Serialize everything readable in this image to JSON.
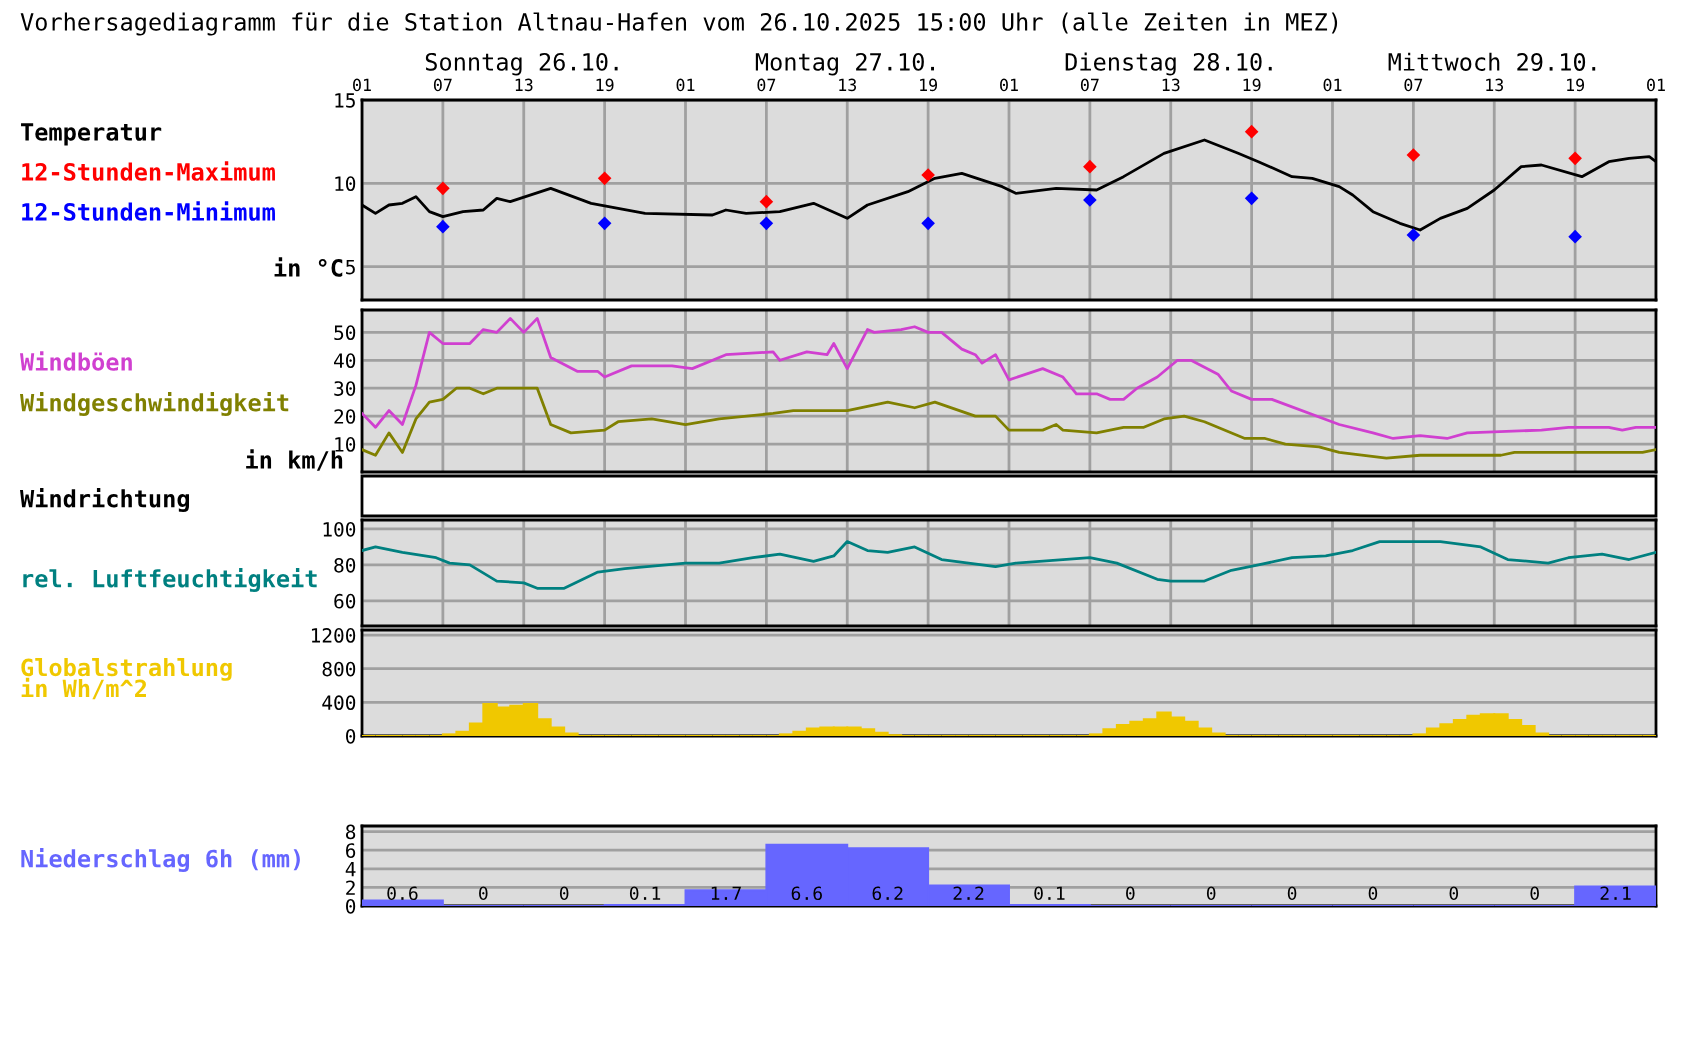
{
  "chart_data": [
    {
      "type": "line",
      "subtitle": "Vorhersagediagramm für die Station Altnau-Hafen vom 26.10.2025 15:00 Uhr (alle Zeiten in MEZ)",
      "ylabel": "in °C",
      "annotations": [
        "Temperatur",
        "Sonntag 26.10.",
        "Montag 27.10.",
        "Dienstag 28.10.",
        "Mittwoch 29.10."
      ],
      "xlim": [
        "2025-10-26T01:00",
        "2025-10-30T01:00"
      ],
      "ylim": [
        3,
        15
      ],
      "yticks": [
        5,
        10,
        15
      ],
      "grid": true,
      "xticks": [
        {
          "value": "2025-10-26T01:00",
          "label": "01"
        },
        {
          "value": "2025-10-26T07:00",
          "label": "07"
        },
        {
          "value": "2025-10-26T13:00",
          "label": "13"
        },
        {
          "value": "2025-10-26T19:00",
          "label": "19"
        },
        {
          "value": "2025-10-27T01:00",
          "label": "01"
        },
        {
          "value": "2025-10-27T07:00",
          "label": "07"
        },
        {
          "value": "2025-10-27T13:00",
          "label": "13"
        },
        {
          "value": "2025-10-27T19:00",
          "label": "19"
        },
        {
          "value": "2025-10-28T01:00",
          "label": "01"
        },
        {
          "value": "2025-10-28T07:00",
          "label": "07"
        },
        {
          "value": "2025-10-28T13:00",
          "label": "13"
        },
        {
          "value": "2025-10-28T19:00",
          "label": "19"
        },
        {
          "value": "2025-10-29T01:00",
          "label": "01"
        },
        {
          "value": "2025-10-29T07:00",
          "label": "07"
        },
        {
          "value": "2025-10-29T13:00",
          "label": "13"
        },
        {
          "value": "2025-10-29T19:00",
          "label": "19"
        },
        {
          "value": "2025-10-30T01:00",
          "label": "01"
        }
      ],
      "series": [
        {
          "type": "line",
          "color": "#000000",
          "x": [
            "2025-10-26T01:00",
            "2025-10-26T02:00",
            "2025-10-26T03:00",
            "2025-10-26T04:00",
            "2025-10-26T05:00",
            "2025-10-26T06:00",
            "2025-10-26T07:00",
            "2025-10-26T08:30",
            "2025-10-26T10:00",
            "2025-10-26T11:00",
            "2025-10-26T12:00",
            "2025-10-26T15:00",
            "2025-10-26T18:00",
            "2025-10-26T22:00",
            "2025-10-27T03:00",
            "2025-10-27T04:00",
            "2025-10-27T05:30",
            "2025-10-27T08:00",
            "2025-10-27T10:30",
            "2025-10-27T13:00",
            "2025-10-27T14:30",
            "2025-10-27T17:30",
            "2025-10-27T19:30",
            "2025-10-27T21:30",
            "2025-10-28T00:30",
            "2025-10-28T01:30",
            "2025-10-28T04:30",
            "2025-10-28T07:30",
            "2025-10-28T09:30",
            "2025-10-28T12:30",
            "2025-10-28T15:30",
            "2025-10-28T18:00",
            "2025-10-28T19:30",
            "2025-10-28T22:00",
            "2025-10-28T23:30",
            "2025-10-29T01:30",
            "2025-10-29T02:30",
            "2025-10-29T04:00",
            "2025-10-29T06:00",
            "2025-10-29T07:30",
            "2025-10-29T09:00",
            "2025-10-29T11:00",
            "2025-10-29T13:00",
            "2025-10-29T15:00",
            "2025-10-29T16:30",
            "2025-10-29T19:30",
            "2025-10-29T21:30",
            "2025-10-29T23:00",
            "2025-10-30T00:30",
            "2025-10-30T01:00"
          ],
          "values": [
            8.7,
            8.2,
            8.7,
            8.8,
            9.2,
            8.3,
            8.0,
            8.3,
            8.4,
            9.1,
            8.9,
            9.7,
            8.8,
            8.2,
            8.1,
            8.4,
            8.2,
            8.3,
            8.8,
            7.9,
            8.7,
            9.5,
            10.3,
            10.6,
            9.8,
            9.4,
            9.7,
            9.6,
            10.4,
            11.8,
            12.6,
            11.8,
            11.3,
            10.4,
            10.3,
            9.8,
            9.3,
            8.3,
            7.6,
            7.2,
            7.9,
            8.5,
            9.6,
            11.0,
            11.1,
            10.4,
            11.3,
            11.5,
            11.6,
            11.3
          ]
        },
        {
          "type": "scatter",
          "name": "12-Stunden-Maximum",
          "color": "#ff0000",
          "marker": "diamond",
          "x": [
            "2025-10-26T07:00",
            "2025-10-26T19:00",
            "2025-10-27T07:00",
            "2025-10-27T19:00",
            "2025-10-28T07:00",
            "2025-10-28T19:00",
            "2025-10-29T07:00",
            "2025-10-29T19:00"
          ],
          "values": [
            9.7,
            10.3,
            8.9,
            10.5,
            11.0,
            13.1,
            11.7,
            11.5
          ]
        },
        {
          "type": "scatter",
          "name": "12-Stunden-Minimum",
          "color": "#0000ff",
          "marker": "diamond",
          "x": [
            "2025-10-26T07:00",
            "2025-10-26T19:00",
            "2025-10-27T07:00",
            "2025-10-27T19:00",
            "2025-10-28T07:00",
            "2025-10-28T19:00",
            "2025-10-29T07:00",
            "2025-10-29T19:00"
          ],
          "values": [
            7.4,
            7.6,
            7.6,
            7.6,
            9.0,
            9.1,
            6.9,
            6.8
          ]
        }
      ]
    },
    {
      "type": "line",
      "ylabel": "in km/h",
      "xlim": [
        "2025-10-26T01:00",
        "2025-10-30T01:00"
      ],
      "ylim": [
        0,
        58
      ],
      "yticks": [
        10,
        20,
        30,
        40,
        50
      ],
      "grid": true,
      "tick_labels": "y",
      "xticks": [
        {
          "value": "2025-10-26T01:00",
          "label": null
        },
        {
          "value": "2025-10-26T07:00",
          "label": null
        },
        {
          "value": "2025-10-26T13:00",
          "label": null
        },
        {
          "value": "2025-10-26T19:00",
          "label": null
        },
        {
          "value": "2025-10-27T01:00",
          "label": null
        },
        {
          "value": "2025-10-27T07:00",
          "label": null
        },
        {
          "value": "2025-10-27T13:00",
          "label": null
        },
        {
          "value": "2025-10-27T19:00",
          "label": null
        },
        {
          "value": "2025-10-28T01:00",
          "label": null
        },
        {
          "value": "2025-10-28T07:00",
          "label": null
        },
        {
          "value": "2025-10-28T13:00",
          "label": null
        },
        {
          "value": "2025-10-28T19:00",
          "label": null
        },
        {
          "value": "2025-10-29T01:00",
          "label": null
        },
        {
          "value": "2025-10-29T07:00",
          "label": null
        },
        {
          "value": "2025-10-29T13:00",
          "label": null
        },
        {
          "value": "2025-10-29T19:00",
          "label": null
        },
        {
          "value": "2025-10-30T01:00",
          "label": null
        }
      ],
      "series": [
        {
          "name": "Windböen",
          "color": "#d040d0",
          "x": [
            "2025-10-26T01:00",
            "2025-10-26T02:00",
            "2025-10-26T03:00",
            "2025-10-26T04:00",
            "2025-10-26T05:00",
            "2025-10-26T06:00",
            "2025-10-26T07:00",
            "2025-10-26T09:00",
            "2025-10-26T10:00",
            "2025-10-26T11:00",
            "2025-10-26T12:00",
            "2025-10-26T13:00",
            "2025-10-26T14:00",
            "2025-10-26T15:00",
            "2025-10-26T17:00",
            "2025-10-26T18:30",
            "2025-10-26T19:00",
            "2025-10-26T21:00",
            "2025-10-27T00:00",
            "2025-10-27T01:30",
            "2025-10-27T04:00",
            "2025-10-27T07:30",
            "2025-10-27T08:00",
            "2025-10-27T10:00",
            "2025-10-27T11:30",
            "2025-10-27T12:00",
            "2025-10-27T13:00",
            "2025-10-27T14:30",
            "2025-10-27T15:00",
            "2025-10-27T17:00",
            "2025-10-27T18:00",
            "2025-10-27T19:00",
            "2025-10-27T20:00",
            "2025-10-27T21:30",
            "2025-10-27T22:30",
            "2025-10-27T23:00",
            "2025-10-28T00:00",
            "2025-10-28T01:00",
            "2025-10-28T03:30",
            "2025-10-28T05:00",
            "2025-10-28T06:00",
            "2025-10-28T07:30",
            "2025-10-28T08:30",
            "2025-10-28T09:30",
            "2025-10-28T10:30",
            "2025-10-28T12:00",
            "2025-10-28T13:30",
            "2025-10-28T14:30",
            "2025-10-28T16:30",
            "2025-10-28T17:30",
            "2025-10-28T19:00",
            "2025-10-28T20:30",
            "2025-10-29T01:30",
            "2025-10-29T04:00",
            "2025-10-29T05:30",
            "2025-10-29T07:30",
            "2025-10-29T09:30",
            "2025-10-29T11:00",
            "2025-10-29T16:30",
            "2025-10-29T18:30",
            "2025-10-29T21:30",
            "2025-10-29T22:30",
            "2025-10-29T23:30",
            "2025-10-30T01:00"
          ],
          "values": [
            21,
            16,
            22,
            17,
            31,
            50,
            46,
            46,
            51,
            50,
            55,
            50,
            55,
            41,
            36,
            36,
            34,
            38,
            38,
            37,
            42,
            43,
            40,
            43,
            42,
            46,
            37,
            51,
            50,
            51,
            52,
            50,
            50,
            44,
            42,
            39,
            42,
            33,
            37,
            34,
            28,
            28,
            26,
            26,
            30,
            34,
            40,
            40,
            35,
            29,
            26,
            26,
            17,
            14,
            12,
            13,
            12,
            14,
            15,
            16,
            16,
            15,
            16,
            16
          ]
        },
        {
          "name": "Windgeschwindigkeit",
          "color": "#808000",
          "x": [
            "2025-10-26T01:00",
            "2025-10-26T02:00",
            "2025-10-26T03:00",
            "2025-10-26T04:00",
            "2025-10-26T05:00",
            "2025-10-26T06:00",
            "2025-10-26T07:00",
            "2025-10-26T08:00",
            "2025-10-26T09:00",
            "2025-10-26T10:00",
            "2025-10-26T11:00",
            "2025-10-26T14:00",
            "2025-10-26T15:00",
            "2025-10-26T16:30",
            "2025-10-26T19:00",
            "2025-10-26T20:00",
            "2025-10-26T22:30",
            "2025-10-27T01:00",
            "2025-10-27T03:30",
            "2025-10-27T07:30",
            "2025-10-27T09:00",
            "2025-10-27T13:00",
            "2025-10-27T16:00",
            "2025-10-27T18:00",
            "2025-10-27T19:30",
            "2025-10-27T22:30",
            "2025-10-28T00:00",
            "2025-10-28T01:00",
            "2025-10-28T03:30",
            "2025-10-28T04:30",
            "2025-10-28T05:00",
            "2025-10-28T07:30",
            "2025-10-28T09:30",
            "2025-10-28T11:00",
            "2025-10-28T12:30",
            "2025-10-28T14:00",
            "2025-10-28T15:30",
            "2025-10-28T18:30",
            "2025-10-28T20:00",
            "2025-10-28T21:30",
            "2025-10-29T00:00",
            "2025-10-29T01:30",
            "2025-10-29T05:00",
            "2025-10-29T07:30",
            "2025-10-29T13:30",
            "2025-10-29T14:30",
            "2025-10-30T00:00",
            "2025-10-30T01:00"
          ],
          "values": [
            8,
            6,
            14,
            7,
            19,
            25,
            26,
            30,
            30,
            28,
            30,
            30,
            17,
            14,
            15,
            18,
            19,
            17,
            19,
            21,
            22,
            22,
            25,
            23,
            25,
            20,
            20,
            15,
            15,
            17,
            15,
            14,
            16,
            16,
            19,
            20,
            18,
            12,
            12,
            10,
            9,
            7,
            5,
            6,
            6,
            7,
            7,
            8
          ]
        }
      ]
    },
    {
      "type": "other",
      "subtitle": "Windrichtung"
    },
    {
      "type": "line",
      "xlim": [
        "2025-10-26T01:00",
        "2025-10-30T01:00"
      ],
      "ylim": [
        46,
        105
      ],
      "yticks": [
        60,
        80,
        100
      ],
      "grid": true,
      "tick_labels": "y",
      "xticks": [
        {
          "value": "2025-10-26T01:00",
          "label": null
        },
        {
          "value": "2025-10-26T07:00",
          "label": null
        },
        {
          "value": "2025-10-26T13:00",
          "label": null
        },
        {
          "value": "2025-10-26T19:00",
          "label": null
        },
        {
          "value": "2025-10-27T01:00",
          "label": null
        },
        {
          "value": "2025-10-27T07:00",
          "label": null
        },
        {
          "value": "2025-10-27T13:00",
          "label": null
        },
        {
          "value": "2025-10-27T19:00",
          "label": null
        },
        {
          "value": "2025-10-28T01:00",
          "label": null
        },
        {
          "value": "2025-10-28T07:00",
          "label": null
        },
        {
          "value": "2025-10-28T13:00",
          "label": null
        },
        {
          "value": "2025-10-28T19:00",
          "label": null
        },
        {
          "value": "2025-10-29T01:00",
          "label": null
        },
        {
          "value": "2025-10-29T07:00",
          "label": null
        },
        {
          "value": "2025-10-29T13:00",
          "label": null
        },
        {
          "value": "2025-10-29T19:00",
          "label": null
        },
        {
          "value": "2025-10-30T01:00",
          "label": null
        }
      ],
      "series": [
        {
          "name": "rel. Luftfeuchtigkeit",
          "color": "#008080",
          "x": [
            "2025-10-26T01:00",
            "2025-10-26T02:00",
            "2025-10-26T04:00",
            "2025-10-26T06:30",
            "2025-10-26T07:30",
            "2025-10-26T09:00",
            "2025-10-26T11:00",
            "2025-10-26T13:00",
            "2025-10-26T14:00",
            "2025-10-26T16:00",
            "2025-10-26T18:30",
            "2025-10-26T20:30",
            "2025-10-27T01:00",
            "2025-10-27T03:30",
            "2025-10-27T06:00",
            "2025-10-27T08:00",
            "2025-10-27T10:30",
            "2025-10-27T12:00",
            "2025-10-27T13:00",
            "2025-10-27T14:30",
            "2025-10-27T16:00",
            "2025-10-27T18:00",
            "2025-10-27T20:00",
            "2025-10-27T22:00",
            "2025-10-28T00:00",
            "2025-10-28T01:30",
            "2025-10-28T07:00",
            "2025-10-28T09:00",
            "2025-10-28T12:00",
            "2025-10-28T13:00",
            "2025-10-28T15:30",
            "2025-10-28T17:30",
            "2025-10-28T19:30",
            "2025-10-28T22:00",
            "2025-10-29T00:30",
            "2025-10-29T02:30",
            "2025-10-29T04:30",
            "2025-10-29T09:00",
            "2025-10-29T12:00",
            "2025-10-29T14:00",
            "2025-10-29T17:00",
            "2025-10-29T18:30",
            "2025-10-29T21:00",
            "2025-10-29T23:00",
            "2025-10-30T01:00"
          ],
          "values": [
            88,
            90,
            87,
            84,
            81,
            80,
            71,
            70,
            67,
            67,
            76,
            78,
            81,
            81,
            84,
            86,
            82,
            85,
            93,
            88,
            87,
            90,
            83,
            81,
            79,
            81,
            84,
            81,
            72,
            71,
            71,
            77,
            80,
            84,
            85,
            88,
            93,
            93,
            90,
            83,
            81,
            84,
            86,
            83,
            87
          ]
        }
      ]
    },
    {
      "type": "bar",
      "ylim": [
        0,
        1260
      ],
      "yticks": [
        0,
        400,
        800,
        1200
      ],
      "grid": "y",
      "categories": [
        null,
        null,
        null,
        null,
        null,
        null,
        null,
        null,
        null,
        null,
        null,
        null,
        null,
        null,
        null,
        null,
        null,
        null,
        null,
        null,
        null,
        null,
        null,
        null,
        null,
        null,
        null,
        null,
        null,
        null,
        null,
        null,
        null,
        null,
        null,
        null,
        null,
        null,
        null,
        null,
        null,
        null,
        null,
        null,
        null,
        null,
        null,
        null,
        null,
        null,
        null,
        null,
        null,
        null,
        null,
        null,
        null,
        null,
        null,
        null,
        null,
        null,
        null,
        null,
        null,
        null,
        null,
        null,
        null,
        null,
        null,
        null,
        null,
        null,
        null,
        null,
        null,
        null,
        null,
        null,
        null,
        null,
        null,
        null,
        null,
        null,
        null,
        null,
        null,
        null,
        null,
        null,
        null,
        null,
        null,
        null
      ],
      "series": [
        {
          "name": "Globalstrahlung\nin Wh/m^2",
          "color": "#f0c800",
          "values": [
            0,
            0,
            0,
            0,
            0,
            0,
            20,
            50,
            150,
            380,
            340,
            360,
            380,
            200,
            100,
            30,
            0,
            0,
            0,
            0,
            0,
            0,
            0,
            0,
            0,
            0,
            0,
            0,
            0,
            0,
            0,
            20,
            50,
            90,
            100,
            100,
            100,
            80,
            40,
            10,
            0,
            0,
            0,
            0,
            0,
            0,
            0,
            0,
            0,
            0,
            0,
            0,
            0,
            0,
            20,
            80,
            130,
            170,
            200,
            280,
            220,
            170,
            90,
            30,
            0,
            0,
            0,
            0,
            0,
            0,
            0,
            0,
            0,
            0,
            0,
            0,
            0,
            0,
            20,
            90,
            140,
            190,
            240,
            260,
            260,
            190,
            120,
            30,
            0,
            0,
            0,
            0,
            0,
            0,
            0,
            0
          ]
        }
      ]
    },
    {
      "type": "bar",
      "ylim": [
        0,
        8.6
      ],
      "yticks": [
        0,
        2,
        4,
        6,
        8
      ],
      "grid": "y",
      "data_labels": true,
      "categories": [
        null,
        null,
        null,
        null,
        null,
        null,
        null,
        null,
        null,
        null,
        null,
        null,
        null,
        null,
        null,
        null
      ],
      "series": [
        {
          "name": "Niederschlag 6h (mm)",
          "color": "#6666ff",
          "values": [
            0.6,
            0,
            0,
            0.1,
            1.7,
            6.6,
            6.2,
            2.2,
            0.1,
            0,
            0,
            0,
            0,
            0,
            0,
            2.1
          ]
        }
      ]
    }
  ]
}
